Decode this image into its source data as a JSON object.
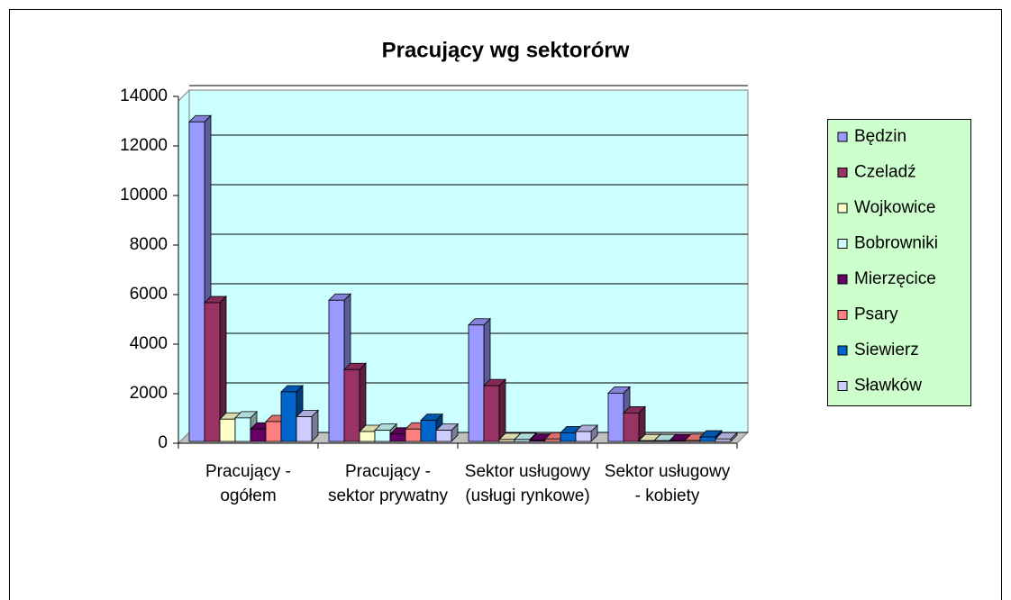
{
  "chart_data": {
    "type": "bar3d",
    "title": "Pracujący wg sektorórw",
    "categories": [
      "Pracujący - ogółem",
      "Pracujący - sektor prywatny",
      "Sektor usługowy (usługi rynkowe)",
      "Sektor usługowy - kobiety"
    ],
    "series": [
      {
        "name": "Będzin",
        "color": "#9999ff",
        "values": [
          12900,
          5700,
          4700,
          1950
        ]
      },
      {
        "name": "Czeladź",
        "color": "#993366",
        "values": [
          5600,
          2900,
          2250,
          1150
        ]
      },
      {
        "name": "Wojkowice",
        "color": "#ffffcc",
        "values": [
          900,
          400,
          80,
          30
        ]
      },
      {
        "name": "Bobrowniki",
        "color": "#ccffff",
        "values": [
          950,
          450,
          80,
          30
        ]
      },
      {
        "name": "Mierzęcice",
        "color": "#660066",
        "values": [
          500,
          300,
          50,
          30
        ]
      },
      {
        "name": "Psary",
        "color": "#ff8080",
        "values": [
          800,
          500,
          100,
          40
        ]
      },
      {
        "name": "Siewierz",
        "color": "#0066cc",
        "values": [
          2000,
          850,
          350,
          180
        ]
      },
      {
        "name": "Sławków",
        "color": "#ccccff",
        "values": [
          1000,
          450,
          400,
          100
        ]
      }
    ],
    "ylim": [
      0,
      14000
    ],
    "yticks": [
      0,
      2000,
      4000,
      6000,
      8000,
      10000,
      12000,
      14000
    ],
    "grid": true,
    "legend": "right"
  }
}
